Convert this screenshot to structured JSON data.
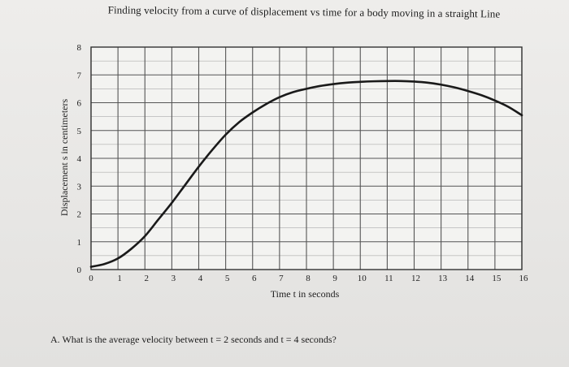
{
  "chart_data": {
    "type": "line",
    "title": "Finding velocity from a curve of displacement vs time for a body moving in a straight Line",
    "xlabel": "Time t in seconds",
    "ylabel": "Displacement s in centimeters",
    "xlim": [
      0,
      16
    ],
    "ylim": [
      0,
      8
    ],
    "x_ticks": [
      "0",
      "1",
      "2",
      "3",
      "4",
      "5",
      "6",
      "7",
      "8",
      "9",
      "10",
      "11",
      "12",
      "13",
      "14",
      "15",
      "16"
    ],
    "y_ticks": [
      "0",
      "1",
      "2",
      "3",
      "4",
      "5",
      "6",
      "7",
      "8"
    ],
    "grid": true,
    "series": [
      {
        "x": [
          0,
          0.5,
          1,
          1.5,
          2,
          2.5,
          3,
          3.5,
          4,
          4.5,
          5,
          5.5,
          6,
          6.5,
          7,
          7.5,
          8,
          8.5,
          9,
          9.5,
          10,
          10.5,
          11,
          11.5,
          12,
          12.5,
          13,
          13.5,
          14,
          14.5,
          15,
          15.5,
          16
        ],
        "y": [
          0.1,
          0.2,
          0.4,
          0.75,
          1.2,
          1.8,
          2.4,
          3.05,
          3.7,
          4.3,
          4.85,
          5.3,
          5.65,
          5.95,
          6.2,
          6.38,
          6.5,
          6.6,
          6.67,
          6.72,
          6.75,
          6.77,
          6.78,
          6.78,
          6.76,
          6.72,
          6.65,
          6.55,
          6.42,
          6.27,
          6.08,
          5.85,
          5.55
        ],
        "color": "#1a1a1a"
      }
    ]
  },
  "question": "A.  What is the average velocity between t = 2 seconds and t = 4 seconds?"
}
